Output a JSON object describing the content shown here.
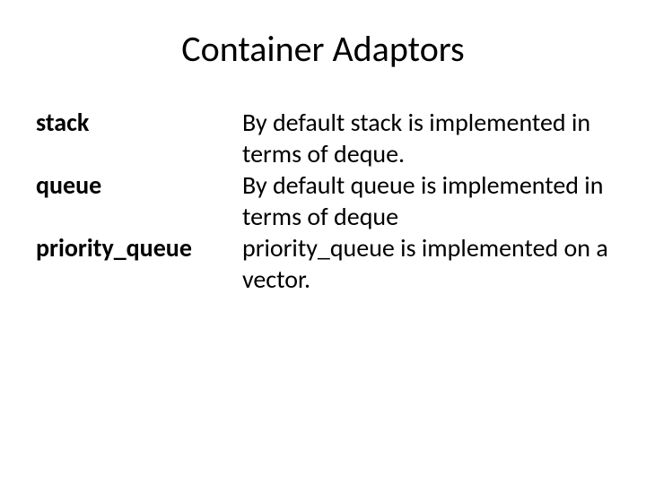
{
  "slide": {
    "title": "Container Adaptors",
    "rows": [
      {
        "term": "stack",
        "desc": "By default stack is implemented in terms of deque."
      },
      {
        "term": "queue",
        "desc": "By default queue is implemented in terms of deque"
      },
      {
        "term": "priority_queue",
        "desc": "priority_queue is implemented on a vector."
      }
    ],
    "title_fontsize": 40,
    "body_fontsize": 28,
    "text_color": "#000000",
    "background_color": "#ffffff"
  }
}
